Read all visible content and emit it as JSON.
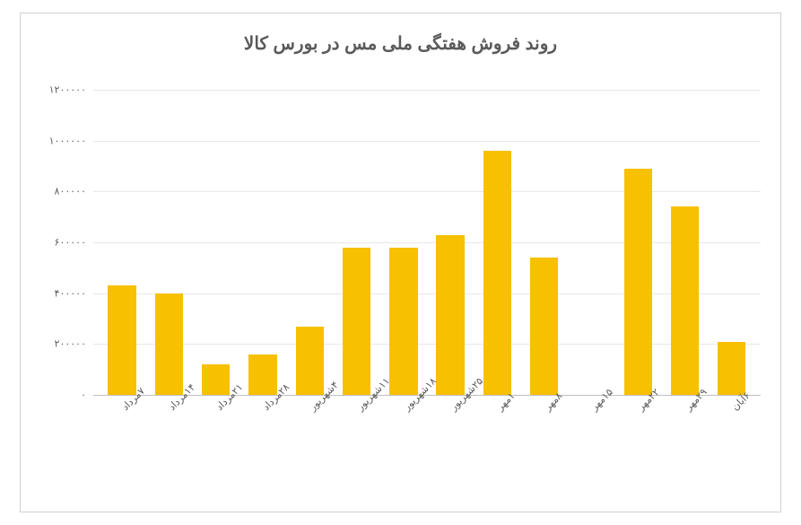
{
  "chart": {
    "type": "bar",
    "title": "روند فروش هفتگی ملی مس در بورس کالا",
    "title_fontsize": 20,
    "title_color": "#5a5a5a",
    "background_color": "#ffffff",
    "frame_border_color": "#d0d0d0",
    "grid_color": "#e8e8e8",
    "axis_color": "#bfbfbf",
    "label_color": "#5a5a5a",
    "label_fontsize": 11,
    "bar_color": "#f7c001",
    "bar_width": 0.6,
    "ylim": [
      0,
      1200000
    ],
    "ytick_step": 200000,
    "yticks": [
      "۰",
      "۲۰۰۰۰۰",
      "۴۰۰۰۰۰",
      "۶۰۰۰۰۰",
      "۸۰۰۰۰۰",
      "۱۰۰۰۰۰۰",
      "۱۲۰۰۰۰۰"
    ],
    "categories": [
      "۷مرداد",
      "۱۴مرداد",
      "۲۱مرداد",
      "۲۸مرداد",
      "۴شهریور",
      "۱۱شهریور",
      "۱۸شهریور",
      "۲۵شهریور",
      "۱مهر",
      "۸مهر",
      "۱۵مهر",
      "۲۲مهر",
      "۲۹مهر",
      "۶آبان"
    ],
    "values": [
      430000,
      400000,
      120000,
      160000,
      270000,
      580000,
      580000,
      630000,
      960000,
      540000,
      0,
      890000,
      740000,
      210000
    ],
    "x_label_rotation": -45
  }
}
